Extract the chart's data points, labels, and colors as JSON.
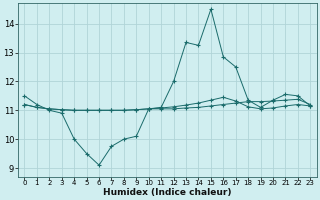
{
  "xlabel": "Humidex (Indice chaleur)",
  "background_color": "#d0eef0",
  "grid_color": "#b0d4d8",
  "line_color": "#1a6b6b",
  "xlim": [
    -0.5,
    23.5
  ],
  "ylim": [
    8.7,
    14.7
  ],
  "xticks": [
    0,
    1,
    2,
    3,
    4,
    5,
    6,
    7,
    8,
    9,
    10,
    11,
    12,
    13,
    14,
    15,
    16,
    17,
    18,
    19,
    20,
    21,
    22,
    23
  ],
  "yticks": [
    9,
    10,
    11,
    12,
    13,
    14
  ],
  "series": [
    [
      11.5,
      11.2,
      11.0,
      10.9,
      10.0,
      9.5,
      9.1,
      9.75,
      10.0,
      10.1,
      11.05,
      11.1,
      12.0,
      13.35,
      13.25,
      14.5,
      12.85,
      12.5,
      11.35,
      11.1,
      11.35,
      11.55,
      11.5,
      11.15
    ],
    [
      11.2,
      11.1,
      11.05,
      11.02,
      11.0,
      11.0,
      11.0,
      11.0,
      11.0,
      11.02,
      11.05,
      11.05,
      11.05,
      11.08,
      11.1,
      11.15,
      11.2,
      11.25,
      11.3,
      11.3,
      11.32,
      11.35,
      11.38,
      11.2
    ],
    [
      11.2,
      11.1,
      11.05,
      11.02,
      11.0,
      11.0,
      11.0,
      11.0,
      11.0,
      11.02,
      11.05,
      11.08,
      11.12,
      11.18,
      11.25,
      11.35,
      11.45,
      11.32,
      11.12,
      11.05,
      11.08,
      11.15,
      11.2,
      11.15
    ]
  ]
}
